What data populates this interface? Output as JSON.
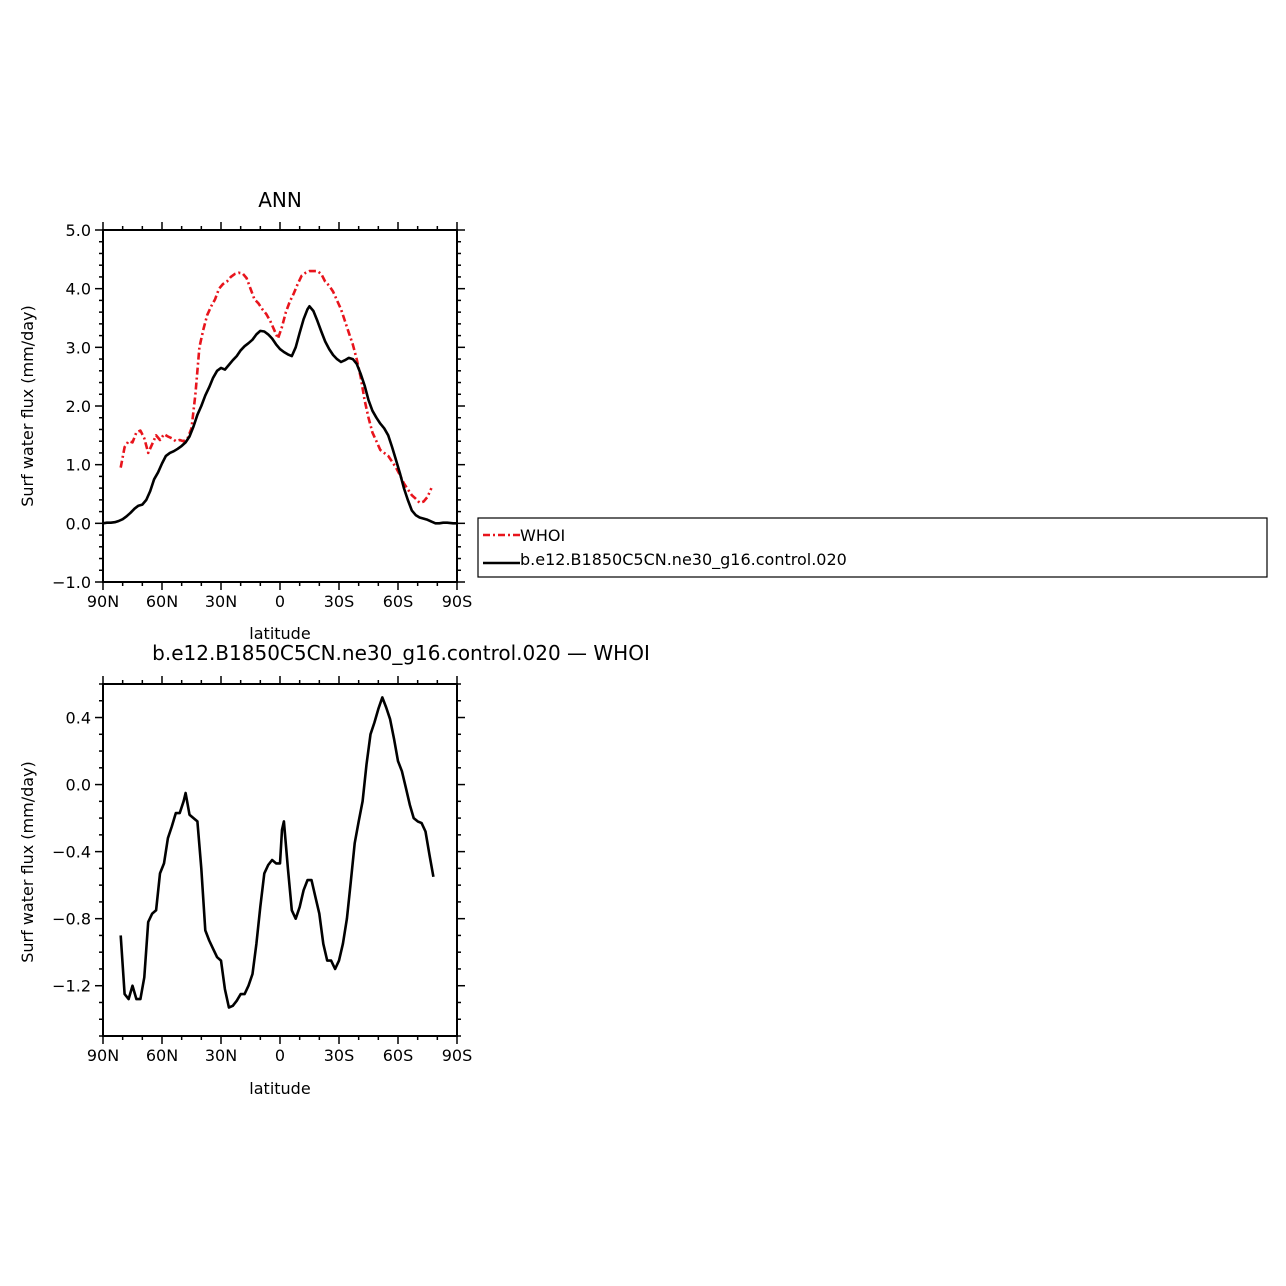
{
  "chart_data": [
    {
      "type": "line",
      "title": "ANN",
      "xlabel": "latitude",
      "ylabel": "Surf  water  flux  (mm/day)",
      "xlim": [
        90,
        -90
      ],
      "ylim": [
        -1.0,
        5.0
      ],
      "x_tick_values": [
        90,
        60,
        30,
        0,
        -30,
        -60,
        -90
      ],
      "x_tick_labels": [
        "90N",
        "60N",
        "30N",
        "0",
        "30S",
        "60S",
        "90S"
      ],
      "y_tick_values": [
        -1,
        0,
        1,
        2,
        3,
        4,
        5
      ],
      "y_tick_labels": [
        "−1.0",
        "0.0",
        "1.0",
        "2.0",
        "3.0",
        "4.0",
        "5.0"
      ],
      "grid": false,
      "series": [
        {
          "name": "WHOI",
          "color": "#e8141c",
          "dash": "dashed",
          "points": [
            [
              81,
              0.95
            ],
            [
              79,
              1.3
            ],
            [
              77,
              1.4
            ],
            [
              75,
              1.38
            ],
            [
              73,
              1.55
            ],
            [
              71,
              1.58
            ],
            [
              69,
              1.45
            ],
            [
              67,
              1.2
            ],
            [
              65,
              1.35
            ],
            [
              63,
              1.5
            ],
            [
              61,
              1.42
            ],
            [
              59,
              1.52
            ],
            [
              57,
              1.48
            ],
            [
              55,
              1.45
            ],
            [
              53,
              1.4
            ],
            [
              51,
              1.42
            ],
            [
              49,
              1.4
            ],
            [
              47,
              1.45
            ],
            [
              45,
              1.62
            ],
            [
              43,
              2.2
            ],
            [
              41,
              3.0
            ],
            [
              39,
              3.3
            ],
            [
              37,
              3.55
            ],
            [
              35,
              3.7
            ],
            [
              33,
              3.82
            ],
            [
              31,
              4.0
            ],
            [
              29,
              4.08
            ],
            [
              27,
              4.12
            ],
            [
              25,
              4.2
            ],
            [
              23,
              4.25
            ],
            [
              21,
              4.27
            ],
            [
              19,
              4.26
            ],
            [
              17,
              4.18
            ],
            [
              15,
              4.0
            ],
            [
              13,
              3.82
            ],
            [
              11,
              3.75
            ],
            [
              9,
              3.65
            ],
            [
              7,
              3.57
            ],
            [
              5,
              3.45
            ],
            [
              3,
              3.3
            ],
            [
              1,
              3.15
            ],
            [
              -1,
              3.35
            ],
            [
              -3,
              3.6
            ],
            [
              -5,
              3.78
            ],
            [
              -7,
              3.92
            ],
            [
              -9,
              4.08
            ],
            [
              -11,
              4.22
            ],
            [
              -13,
              4.27
            ],
            [
              -15,
              4.3
            ],
            [
              -17,
              4.3
            ],
            [
              -19,
              4.3
            ],
            [
              -21,
              4.25
            ],
            [
              -23,
              4.12
            ],
            [
              -25,
              4.05
            ],
            [
              -27,
              3.95
            ],
            [
              -29,
              3.8
            ],
            [
              -31,
              3.65
            ],
            [
              -33,
              3.45
            ],
            [
              -35,
              3.25
            ],
            [
              -37,
              3.05
            ],
            [
              -39,
              2.8
            ],
            [
              -41,
              2.5
            ],
            [
              -43,
              2.1
            ],
            [
              -45,
              1.8
            ],
            [
              -47,
              1.55
            ],
            [
              -49,
              1.4
            ],
            [
              -51,
              1.25
            ],
            [
              -53,
              1.2
            ],
            [
              -55,
              1.15
            ],
            [
              -57,
              1.05
            ],
            [
              -59,
              0.95
            ],
            [
              -61,
              0.82
            ],
            [
              -63,
              0.68
            ],
            [
              -65,
              0.58
            ],
            [
              -67,
              0.48
            ],
            [
              -69,
              0.42
            ],
            [
              -71,
              0.35
            ],
            [
              -73,
              0.37
            ],
            [
              -75,
              0.45
            ],
            [
              -77,
              0.6
            ]
          ]
        },
        {
          "name": "b.e12.B1850C5CN.ne30_g16.control.020",
          "color": "#000000",
          "dash": "solid",
          "points": [
            [
              90,
              0.0
            ],
            [
              88,
              0.01
            ],
            [
              86,
              0.01
            ],
            [
              84,
              0.02
            ],
            [
              82,
              0.04
            ],
            [
              80,
              0.07
            ],
            [
              78,
              0.12
            ],
            [
              76,
              0.18
            ],
            [
              74,
              0.25
            ],
            [
              72,
              0.3
            ],
            [
              70,
              0.32
            ],
            [
              68,
              0.4
            ],
            [
              66,
              0.55
            ],
            [
              64,
              0.75
            ],
            [
              62,
              0.87
            ],
            [
              60,
              1.02
            ],
            [
              58,
              1.15
            ],
            [
              56,
              1.2
            ],
            [
              54,
              1.23
            ],
            [
              52,
              1.27
            ],
            [
              50,
              1.32
            ],
            [
              48,
              1.38
            ],
            [
              46,
              1.48
            ],
            [
              44,
              1.65
            ],
            [
              42,
              1.85
            ],
            [
              40,
              2.0
            ],
            [
              38,
              2.18
            ],
            [
              36,
              2.32
            ],
            [
              34,
              2.48
            ],
            [
              32,
              2.6
            ],
            [
              30,
              2.65
            ],
            [
              28,
              2.62
            ],
            [
              26,
              2.7
            ],
            [
              24,
              2.78
            ],
            [
              22,
              2.85
            ],
            [
              20,
              2.95
            ],
            [
              18,
              3.02
            ],
            [
              16,
              3.07
            ],
            [
              14,
              3.13
            ],
            [
              12,
              3.22
            ],
            [
              10,
              3.28
            ],
            [
              8,
              3.27
            ],
            [
              6,
              3.22
            ],
            [
              4,
              3.15
            ],
            [
              2,
              3.05
            ],
            [
              0,
              2.97
            ],
            [
              -2,
              2.92
            ],
            [
              -4,
              2.88
            ],
            [
              -6,
              2.85
            ],
            [
              -8,
              3.0
            ],
            [
              -10,
              3.25
            ],
            [
              -12,
              3.48
            ],
            [
              -14,
              3.65
            ],
            [
              -15,
              3.7
            ],
            [
              -17,
              3.62
            ],
            [
              -19,
              3.45
            ],
            [
              -21,
              3.27
            ],
            [
              -23,
              3.1
            ],
            [
              -25,
              2.97
            ],
            [
              -27,
              2.87
            ],
            [
              -29,
              2.8
            ],
            [
              -31,
              2.75
            ],
            [
              -33,
              2.78
            ],
            [
              -35,
              2.82
            ],
            [
              -37,
              2.8
            ],
            [
              -39,
              2.72
            ],
            [
              -41,
              2.55
            ],
            [
              -43,
              2.35
            ],
            [
              -45,
              2.1
            ],
            [
              -47,
              1.92
            ],
            [
              -49,
              1.8
            ],
            [
              -51,
              1.7
            ],
            [
              -53,
              1.62
            ],
            [
              -55,
              1.5
            ],
            [
              -57,
              1.3
            ],
            [
              -59,
              1.08
            ],
            [
              -61,
              0.85
            ],
            [
              -63,
              0.6
            ],
            [
              -65,
              0.4
            ],
            [
              -67,
              0.22
            ],
            [
              -69,
              0.14
            ],
            [
              -71,
              0.1
            ],
            [
              -73,
              0.08
            ],
            [
              -75,
              0.06
            ],
            [
              -77,
              0.03
            ],
            [
              -79,
              0.0
            ],
            [
              -81,
              0.0
            ],
            [
              -83,
              0.01
            ],
            [
              -85,
              0.01
            ],
            [
              -88,
              0.0
            ],
            [
              -90,
              0.0
            ]
          ]
        }
      ]
    },
    {
      "type": "line",
      "title": "b.e12.B1850C5CN.ne30_g16.control.020 — WHOI",
      "xlabel": "latitude",
      "ylabel": "Surf  water  flux  (mm/day)",
      "xlim": [
        90,
        -90
      ],
      "ylim": [
        -1.5,
        0.6
      ],
      "x_tick_values": [
        90,
        60,
        30,
        0,
        -30,
        -60,
        -90
      ],
      "x_tick_labels": [
        "90N",
        "60N",
        "30N",
        "0",
        "30S",
        "60S",
        "90S"
      ],
      "y_tick_values": [
        -1.2,
        -0.8,
        -0.4,
        0.0,
        0.4
      ],
      "y_tick_labels": [
        "−1.2",
        "−0.8",
        "−0.4",
        "0.0",
        "0.4"
      ],
      "grid": false,
      "series": [
        {
          "color": "#000000",
          "dash": "solid",
          "points": [
            [
              81,
              -0.9
            ],
            [
              79,
              -1.25
            ],
            [
              77,
              -1.28
            ],
            [
              75,
              -1.2
            ],
            [
              73,
              -1.28
            ],
            [
              71,
              -1.28
            ],
            [
              69,
              -1.15
            ],
            [
              67,
              -0.82
            ],
            [
              65,
              -0.77
            ],
            [
              63,
              -0.75
            ],
            [
              61,
              -0.53
            ],
            [
              59,
              -0.47
            ],
            [
              57,
              -0.32
            ],
            [
              55,
              -0.25
            ],
            [
              53,
              -0.17
            ],
            [
              51,
              -0.17
            ],
            [
              49,
              -0.1
            ],
            [
              48,
              -0.05
            ],
            [
              46,
              -0.18
            ],
            [
              44,
              -0.2
            ],
            [
              42,
              -0.22
            ],
            [
              40,
              -0.5
            ],
            [
              38,
              -0.87
            ],
            [
              36,
              -0.93
            ],
            [
              34,
              -0.98
            ],
            [
              32,
              -1.03
            ],
            [
              30,
              -1.05
            ],
            [
              28,
              -1.22
            ],
            [
              26,
              -1.33
            ],
            [
              24,
              -1.32
            ],
            [
              22,
              -1.29
            ],
            [
              20,
              -1.25
            ],
            [
              18,
              -1.25
            ],
            [
              16,
              -1.2
            ],
            [
              14,
              -1.13
            ],
            [
              12,
              -0.95
            ],
            [
              10,
              -0.73
            ],
            [
              8,
              -0.53
            ],
            [
              6,
              -0.48
            ],
            [
              4,
              -0.45
            ],
            [
              2,
              -0.47
            ],
            [
              0,
              -0.47
            ],
            [
              -1,
              -0.27
            ],
            [
              -2,
              -0.22
            ],
            [
              -4,
              -0.5
            ],
            [
              -6,
              -0.75
            ],
            [
              -8,
              -0.8
            ],
            [
              -10,
              -0.73
            ],
            [
              -12,
              -0.63
            ],
            [
              -14,
              -0.57
            ],
            [
              -16,
              -0.57
            ],
            [
              -18,
              -0.67
            ],
            [
              -20,
              -0.77
            ],
            [
              -22,
              -0.95
            ],
            [
              -24,
              -1.05
            ],
            [
              -26,
              -1.05
            ],
            [
              -28,
              -1.1
            ],
            [
              -30,
              -1.05
            ],
            [
              -32,
              -0.95
            ],
            [
              -34,
              -0.8
            ],
            [
              -36,
              -0.58
            ],
            [
              -38,
              -0.35
            ],
            [
              -40,
              -0.22
            ],
            [
              -42,
              -0.1
            ],
            [
              -44,
              0.12
            ],
            [
              -46,
              0.3
            ],
            [
              -48,
              0.37
            ],
            [
              -50,
              0.45
            ],
            [
              -52,
              0.52
            ],
            [
              -54,
              0.46
            ],
            [
              -56,
              0.39
            ],
            [
              -58,
              0.27
            ],
            [
              -60,
              0.14
            ],
            [
              -62,
              0.08
            ],
            [
              -64,
              -0.02
            ],
            [
              -66,
              -0.12
            ],
            [
              -68,
              -0.2
            ],
            [
              -70,
              -0.22
            ],
            [
              -72,
              -0.23
            ],
            [
              -74,
              -0.28
            ],
            [
              -76,
              -0.42
            ],
            [
              -78,
              -0.55
            ]
          ]
        }
      ]
    }
  ],
  "legend": {
    "entries": [
      {
        "label": "WHOI",
        "color": "#e8141c",
        "dash": "dashed"
      },
      {
        "label": "b.e12.B1850C5CN.ne30_g16.control.020",
        "color": "#000000",
        "dash": "solid"
      }
    ]
  }
}
